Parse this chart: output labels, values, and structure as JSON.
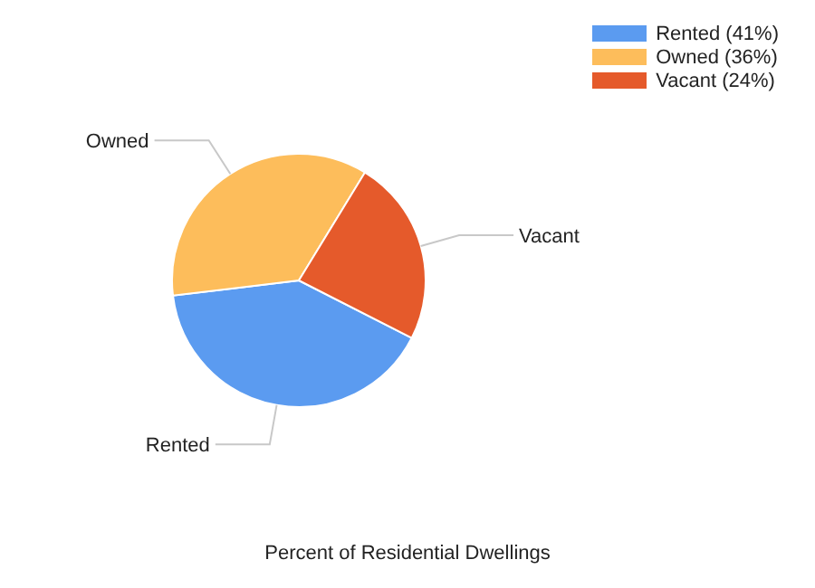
{
  "chart_data": {
    "type": "pie",
    "title": "Percent of Residential Dwellings",
    "categories": [
      "Rented",
      "Owned",
      "Vacant"
    ],
    "values": [
      41,
      36,
      24
    ],
    "value_labels": [
      "(41%)",
      "(36%)",
      "(24%)"
    ],
    "colors": [
      "#5b9bf0",
      "#fdbd5b",
      "#e55a2b"
    ],
    "legend": "top right"
  }
}
